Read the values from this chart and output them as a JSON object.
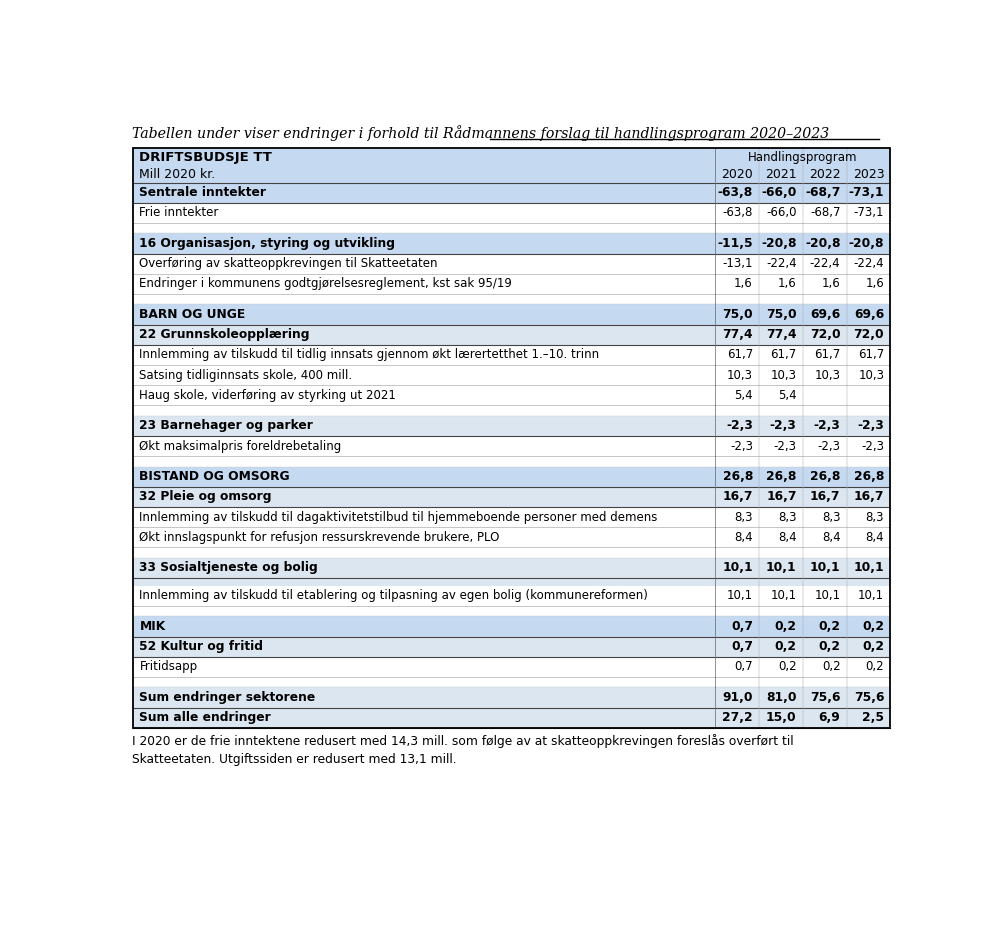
{
  "title": "Tabellen under viser endringer i forhold til Rådmannens forslag til handlingsprogram 2020–2023",
  "footnote": "I 2020 er de frie inntektene redusert med 14,3 mill. som følge av at skatteoppkrevingen foreslås overført til\nSkatteetaten. Utgiftssiden er redusert med 13,1 mill.",
  "header_left": "DRIFTSBUDSJE TT",
  "header_mid": "Handlingsprogram",
  "header_years": [
    "2020",
    "2021",
    "2022",
    "2023"
  ],
  "subheader_left": "Mill 2020 kr.",
  "bg_header": "#c5d9f1",
  "bg_subsection": "#dce6f1",
  "bg_white": "#ffffff",
  "rows": [
    {
      "label": "Sentrale inntekter",
      "vals": [
        "-63,8",
        "-66,0",
        "-68,7",
        "-73,1"
      ],
      "type": "section"
    },
    {
      "label": "Frie inntekter",
      "vals": [
        "-63,8",
        "-66,0",
        "-68,7",
        "-73,1"
      ],
      "type": "detail"
    },
    {
      "label": "",
      "vals": [
        "",
        "",
        "",
        ""
      ],
      "type": "spacer"
    },
    {
      "label": "16 Organisasjon, styring og utvikling",
      "vals": [
        "-11,5",
        "-20,8",
        "-20,8",
        "-20,8"
      ],
      "type": "section"
    },
    {
      "label": "Overføring av skatteoppkrevingen til Skatteetaten",
      "vals": [
        "-13,1",
        "-22,4",
        "-22,4",
        "-22,4"
      ],
      "type": "detail"
    },
    {
      "label": "Endringer i kommunens godtgjørelsesreglement, kst sak 95/19",
      "vals": [
        "1,6",
        "1,6",
        "1,6",
        "1,6"
      ],
      "type": "detail"
    },
    {
      "label": "",
      "vals": [
        "",
        "",
        "",
        ""
      ],
      "type": "spacer"
    },
    {
      "label": "BARN OG UNGE",
      "vals": [
        "75,0",
        "75,0",
        "69,6",
        "69,6"
      ],
      "type": "section_bold"
    },
    {
      "label": "22 Grunnskoleopplæring",
      "vals": [
        "77,4",
        "77,4",
        "72,0",
        "72,0"
      ],
      "type": "subsection"
    },
    {
      "label": "Innlemming av tilskudd til tidlig innsats gjennom økt lærertetthet 1.–10. trinn",
      "vals": [
        "61,7",
        "61,7",
        "61,7",
        "61,7"
      ],
      "type": "detail"
    },
    {
      "label": "Satsing tidliginnsats skole, 400 mill.",
      "vals": [
        "10,3",
        "10,3",
        "10,3",
        "10,3"
      ],
      "type": "detail"
    },
    {
      "label": "Haug skole, viderføring av styrking ut 2021",
      "vals": [
        "5,4",
        "5,4",
        "",
        ""
      ],
      "type": "detail"
    },
    {
      "label": "",
      "vals": [
        "",
        "",
        "",
        ""
      ],
      "type": "spacer"
    },
    {
      "label": "23 Barnehager og parker",
      "vals": [
        "-2,3",
        "-2,3",
        "-2,3",
        "-2,3"
      ],
      "type": "subsection"
    },
    {
      "label": "Økt maksimalpris foreldrebetaling",
      "vals": [
        "-2,3",
        "-2,3",
        "-2,3",
        "-2,3"
      ],
      "type": "detail"
    },
    {
      "label": "",
      "vals": [
        "",
        "",
        "",
        ""
      ],
      "type": "spacer"
    },
    {
      "label": "BISTAND OG OMSORG",
      "vals": [
        "26,8",
        "26,8",
        "26,8",
        "26,8"
      ],
      "type": "section_bold"
    },
    {
      "label": "32 Pleie og omsorg",
      "vals": [
        "16,7",
        "16,7",
        "16,7",
        "16,7"
      ],
      "type": "subsection"
    },
    {
      "label": "Innlemming av tilskudd til dagaktivitetstilbud til hjemmeboende personer med demens",
      "vals": [
        "8,3",
        "8,3",
        "8,3",
        "8,3"
      ],
      "type": "detail"
    },
    {
      "label": "Økt innslagspunkt for refusjon ressurskrevende brukere, PLO",
      "vals": [
        "8,4",
        "8,4",
        "8,4",
        "8,4"
      ],
      "type": "detail"
    },
    {
      "label": "",
      "vals": [
        "",
        "",
        "",
        ""
      ],
      "type": "spacer"
    },
    {
      "label": "33 Sosialtjeneste og bolig",
      "vals": [
        "10,1",
        "10,1",
        "10,1",
        "10,1"
      ],
      "type": "subsection"
    },
    {
      "label": "",
      "vals": [
        "",
        "",
        "",
        ""
      ],
      "type": "spacer_sub"
    },
    {
      "label": "Innlemming av tilskudd til etablering og tilpasning av egen bolig (kommunereformen)",
      "vals": [
        "10,1",
        "10,1",
        "10,1",
        "10,1"
      ],
      "type": "detail"
    },
    {
      "label": "",
      "vals": [
        "",
        "",
        "",
        ""
      ],
      "type": "spacer"
    },
    {
      "label": "MIK",
      "vals": [
        "0,7",
        "0,2",
        "0,2",
        "0,2"
      ],
      "type": "section_bold"
    },
    {
      "label": "52 Kultur og fritid",
      "vals": [
        "0,7",
        "0,2",
        "0,2",
        "0,2"
      ],
      "type": "subsection"
    },
    {
      "label": "Fritidsapp",
      "vals": [
        "0,7",
        "0,2",
        "0,2",
        "0,2"
      ],
      "type": "detail"
    },
    {
      "label": "",
      "vals": [
        "",
        "",
        "",
        ""
      ],
      "type": "spacer"
    },
    {
      "label": "Sum endringer sektorene",
      "vals": [
        "91,0",
        "81,0",
        "75,6",
        "75,6"
      ],
      "type": "sum"
    },
    {
      "label": "Sum alle endringer",
      "vals": [
        "27,2",
        "15,0",
        "6,9",
        "2,5"
      ],
      "type": "sum_bold"
    }
  ]
}
